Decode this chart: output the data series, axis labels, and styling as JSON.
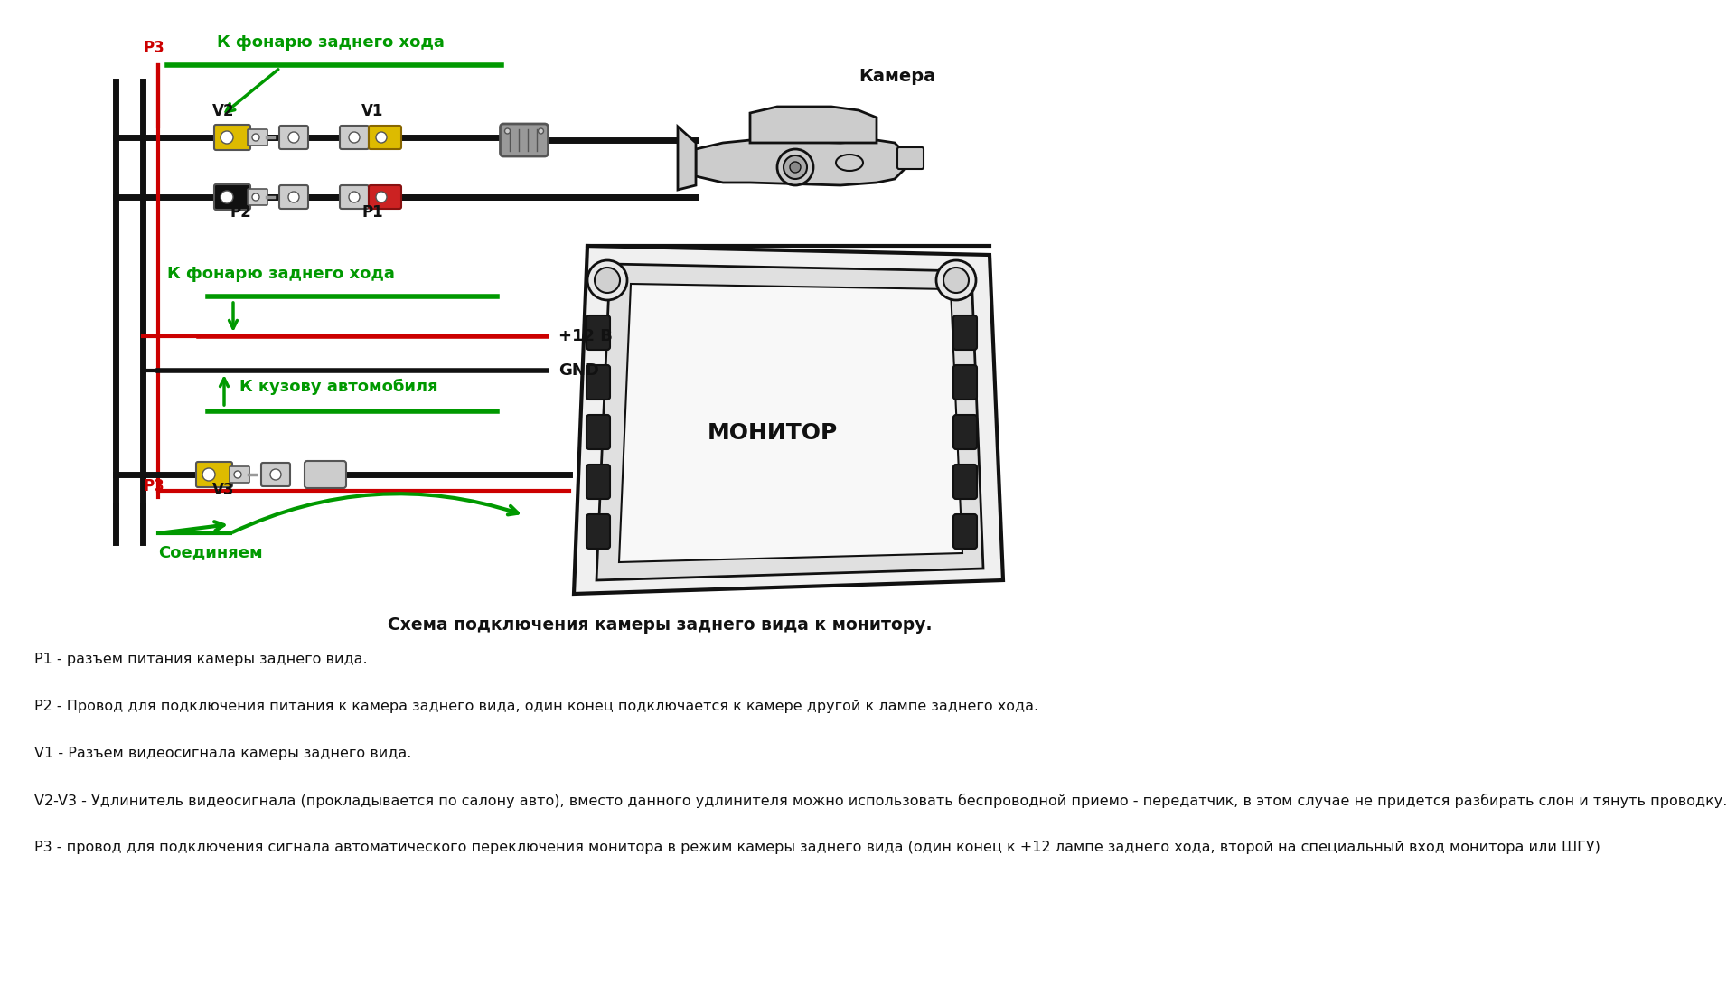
{
  "title": "Схема подключения камеры заднего вида к монитору.",
  "bg_color": "#ffffff",
  "green_color": "#009900",
  "red_color": "#cc0000",
  "black_color": "#111111",
  "yellow_color": "#ddbb00",
  "gray_color": "#888888",
  "text_color": "#111111",
  "desc_fontsize": 11.5,
  "descriptions": [
    "P1 - разъем питания камеры заднего вида.",
    "P2 - Провод для подключения питания к камера заднего вида, один конец подключается к камере другой к лампе заднего хода.",
    "V1 - Разъем видеосигнала камеры заднего вида.",
    "V2-V3 - Удлинитель видеосигнала (прокладывается по салону авто), вместо данного удлинителя можно использовать беспроводной приемо - передатчик, в этом случае не придется разбирать слон и тянуть проводку.",
    "P3 - провод для подключения сигнала автоматического переключения монитора в режим камеры заднего вида (один конец к +12 лампе заднего хода, второй на специальный вход монитора или ШГУ)"
  ],
  "top_label": "К фонарю заднего хода",
  "mid_label": "К фонарю заднего хода",
  "gnd_label": "GND",
  "plus12_label": "+12 В",
  "body_label": "К кузову автомобиля",
  "camera_label": "Камера",
  "monitor_label": "МОНИТОР",
  "connect_label": "Соединяем",
  "p3_label": "P3",
  "v2_label": "V2",
  "v1_label": "V1",
  "p2_label": "P2",
  "p1_label": "P1",
  "v3_label": "V3"
}
